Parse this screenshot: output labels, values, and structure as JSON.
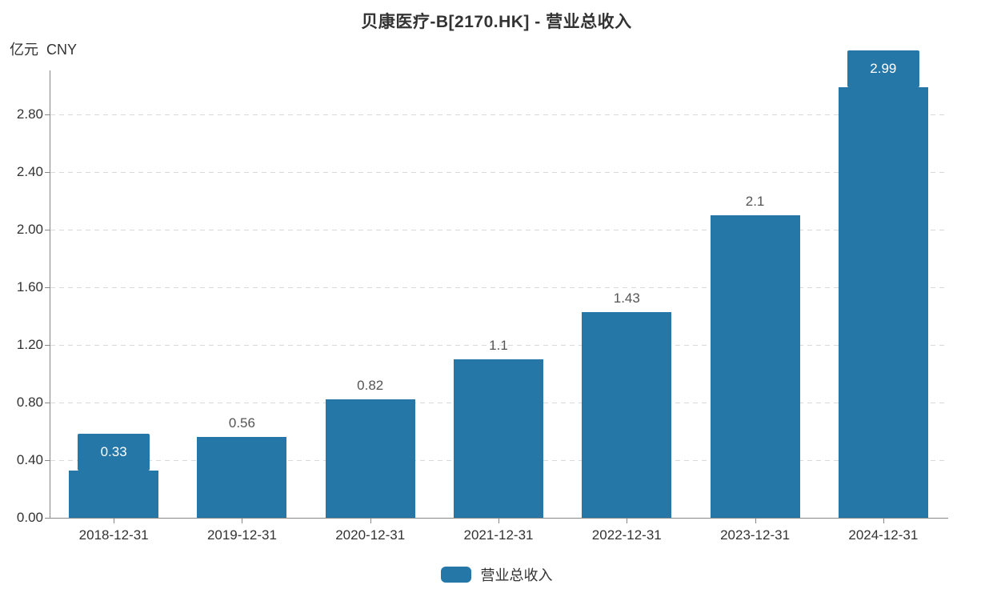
{
  "title": "贝康医疗-B[2170.HK] - 营业总收入",
  "unit_label": "亿元  CNY",
  "legend": {
    "label": "营业总收入"
  },
  "colors": {
    "bar": "#2577a8",
    "axis": "#888888",
    "gridline": "#d9d9d9",
    "title_text": "#333333",
    "tick_text": "#333333",
    "value_text": "#555555",
    "boxed_label_text": "#ffffff"
  },
  "chart_data": {
    "type": "bar",
    "title": "贝康医疗-B[2170.HK] - 营业总收入",
    "series_name": "营业总收入",
    "unit": "亿元 CNY",
    "categories": [
      "2018-12-31",
      "2019-12-31",
      "2020-12-31",
      "2021-12-31",
      "2022-12-31",
      "2023-12-31",
      "2024-12-31"
    ],
    "values": [
      0.33,
      0.56,
      0.82,
      1.1,
      1.43,
      2.1,
      2.99
    ],
    "value_labels": [
      "0.33",
      "0.56",
      "0.82",
      "1.1",
      "1.43",
      "2.1",
      "2.99"
    ],
    "label_boxed": [
      true,
      false,
      false,
      false,
      false,
      false,
      true
    ],
    "y_ticks": [
      "0.00",
      "0.40",
      "0.80",
      "1.20",
      "1.60",
      "2.00",
      "2.40",
      "2.80"
    ],
    "ylabel": "亿元 CNY",
    "ylim": [
      0,
      3.1
    ],
    "grid": true,
    "legend_position": "bottom",
    "bar_color": "#2577a8"
  }
}
